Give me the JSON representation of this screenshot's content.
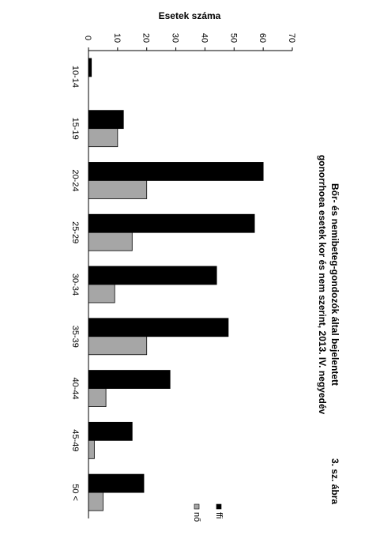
{
  "chart_data": {
    "type": "bar",
    "orientation": "rotated-90-cw",
    "figure_label": "3. sz. ábra",
    "title_lines": [
      "Bőr- és nemibeteg-gondozók által bejelentett",
      "gonorrhoea esetek kor és nem szerint, 2013. IV. negyedév"
    ],
    "ylabel": "Esetek száma",
    "xlabel": "",
    "ylim": [
      0,
      70
    ],
    "yticks": [
      0,
      10,
      20,
      30,
      40,
      50,
      60,
      70
    ],
    "grid": false,
    "legend_position": "right",
    "categories": [
      "10-14",
      "15-19",
      "20-24",
      "25-29",
      "30-34",
      "35-39",
      "40-44",
      "45-49",
      "50 <"
    ],
    "series": [
      {
        "name": "ffi",
        "color": "#000000",
        "values": [
          1,
          12,
          60,
          57,
          44,
          48,
          28,
          15,
          19
        ]
      },
      {
        "name": "nő",
        "color": "#a6a6a6",
        "values": [
          0,
          10,
          20,
          15,
          9,
          20,
          6,
          2,
          5
        ]
      }
    ]
  }
}
